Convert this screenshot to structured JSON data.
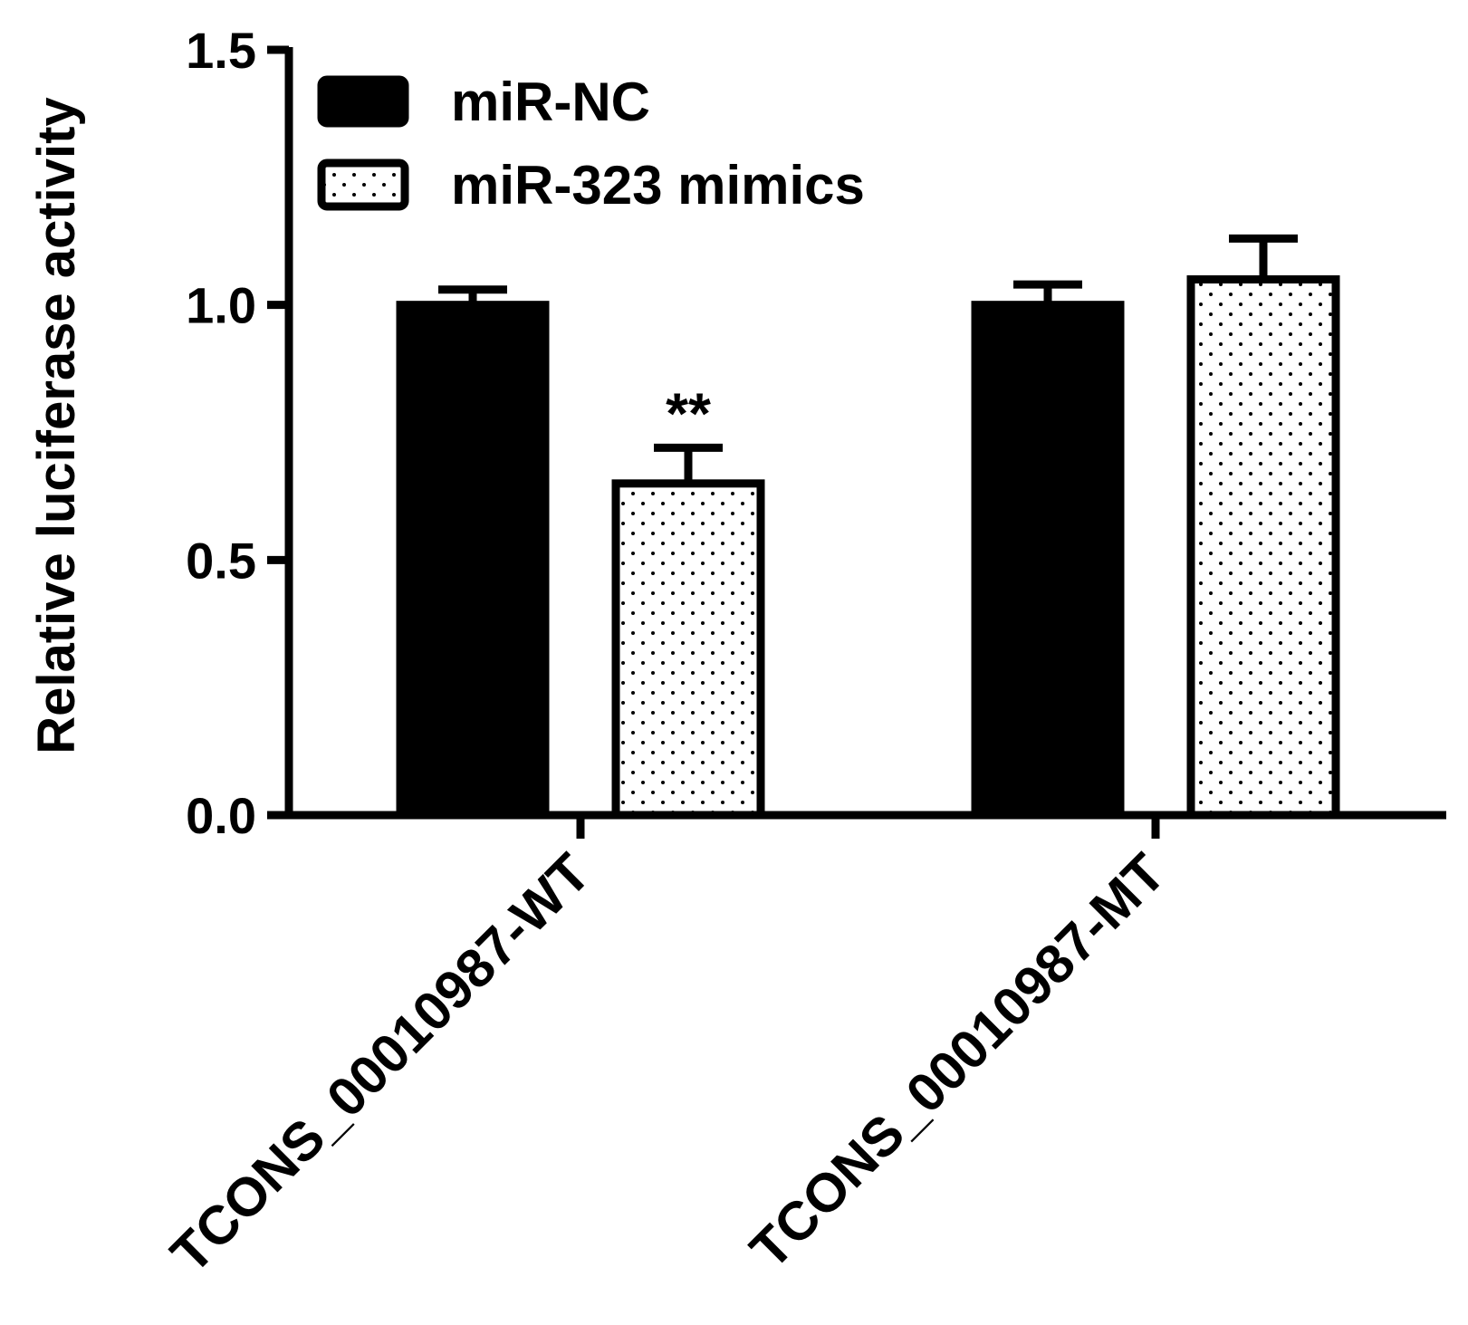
{
  "chart_data": {
    "type": "bar",
    "title": "",
    "xlabel": "",
    "ylabel": "Relative luciferase activity",
    "ylim": [
      0,
      1.5
    ],
    "yticks": [
      "0.0",
      "0.5",
      "1.0",
      "1.5"
    ],
    "categories": [
      "TCONS_00010987-WT",
      "TCONS_00010987-MT"
    ],
    "series": [
      {
        "name": "miR-NC",
        "values": [
          1.0,
          1.0
        ],
        "errors": [
          0.03,
          0.04
        ],
        "fill": "#000000",
        "pattern": "solid"
      },
      {
        "name": "miR-323 mimics",
        "values": [
          0.65,
          1.05
        ],
        "errors": [
          0.07,
          0.08
        ],
        "fill": "#ffffff",
        "pattern": "dotted"
      }
    ],
    "annotations": [
      {
        "text": "**",
        "category": 0,
        "series": 1
      }
    ],
    "legend": "top-left",
    "grid": false
  }
}
